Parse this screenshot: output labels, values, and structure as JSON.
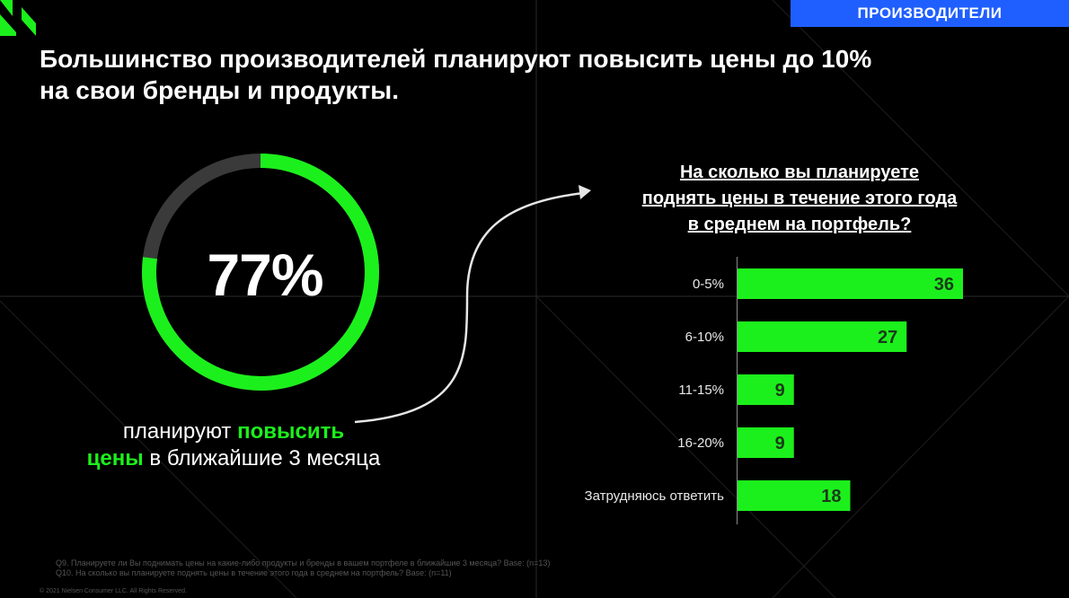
{
  "header": {
    "tag": "ПРОИЗВОДИТЕЛИ",
    "title_line1": "Большинство производителей планируют повысить цены до 10%",
    "title_line2": "на свои бренды и продукты."
  },
  "kpi": {
    "value": 77,
    "value_label": "77%",
    "caption_pre": "планируют ",
    "caption_hl1": "повысить",
    "caption_hl2": "цены",
    "caption_post": " в ближайшие 3 месяца"
  },
  "question": {
    "line1": "На сколько вы планируете",
    "line2": "поднять цены в течение этого года",
    "line3": "в среднем на портфель?"
  },
  "colors": {
    "accent": "#1cf01c",
    "tag_bg": "#1f5fff",
    "ring_track": "#3a3a3a",
    "background": "#000000"
  },
  "chart_data": {
    "type": "bar",
    "orientation": "horizontal",
    "categories": [
      "0-5%",
      "6-10%",
      "11-15%",
      "16-20%",
      "Затрудняюсь ответить"
    ],
    "values": [
      36,
      27,
      9,
      9,
      18
    ],
    "title": "На сколько вы планируете поднять цены в течение этого года в среднем на портфель?",
    "data_labels": true,
    "xlim": [
      0,
      36
    ]
  },
  "footnotes": {
    "q9": "Q9. Планируете ли Вы поднимать цены на какие-либо продукты и бренды в вашем портфеле в ближайшие 3 месяца? Base: (n=13)",
    "q10": "Q10. На сколько вы планируете поднять цены в течение этого года в среднем на портфель? Base: (n=11)",
    "copyright": "© 2021 Nielsen Consumer LLC. All Rights Reserved."
  }
}
